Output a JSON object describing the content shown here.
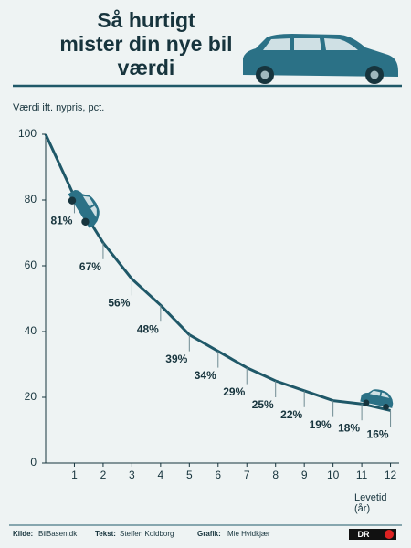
{
  "chart_data": {
    "type": "line",
    "title": [
      "Så hurtigt",
      "mister din nye bil",
      "værdi"
    ],
    "y_axis_label": "Værdi ift. nypris, pct.",
    "x_axis_label": [
      "Levetid",
      "(år)"
    ],
    "x": [
      0,
      1,
      2,
      3,
      4,
      5,
      6,
      7,
      8,
      9,
      10,
      11,
      12
    ],
    "values": [
      100,
      81,
      67,
      56,
      48,
      39,
      34,
      29,
      25,
      22,
      19,
      18,
      16
    ],
    "value_labels": [
      null,
      "81%",
      "67%",
      "56%",
      "48%",
      "39%",
      "34%",
      "29%",
      "25%",
      "22%",
      "19%",
      "18%",
      "16%"
    ],
    "color": "#1f5868",
    "xlim": [
      0,
      12.3
    ],
    "xticks": [
      1,
      2,
      3,
      4,
      5,
      6,
      7,
      8,
      9,
      10,
      11,
      12
    ],
    "ylim": [
      0,
      100
    ],
    "yticks": [
      0,
      20,
      40,
      60,
      80,
      100
    ]
  },
  "footer": {
    "source_label": "Kilde:",
    "source": "BilBasen.dk",
    "text_label": "Tekst:",
    "text": "Steffen Koldborg",
    "graphics_label": "Grafik:",
    "graphics": "Mie Hvidkjær",
    "logo": "DR"
  }
}
